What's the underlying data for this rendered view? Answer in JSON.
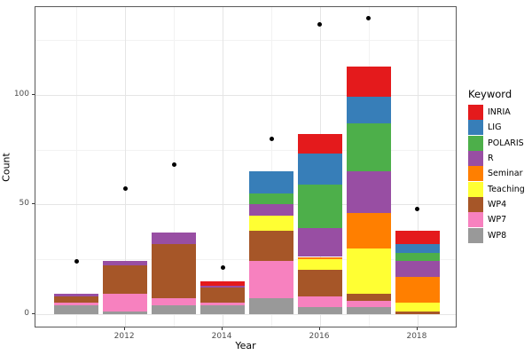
{
  "chart_data": {
    "type": "bar",
    "stacked": true,
    "title": "",
    "xlabel": "Year",
    "ylabel": "Count",
    "legend_title": "Keyword",
    "legend_position": "right",
    "grid": true,
    "categories": [
      2011,
      2012,
      2013,
      2014,
      2015,
      2016,
      2017,
      2018
    ],
    "series": [
      {
        "name": "INRIA",
        "color": "#E41A1C",
        "values": [
          0,
          0,
          0,
          2,
          0,
          9,
          14,
          6
        ]
      },
      {
        "name": "LIG",
        "color": "#377EB8",
        "values": [
          0,
          0,
          0,
          0,
          10,
          14,
          12,
          4
        ]
      },
      {
        "name": "POLARIS",
        "color": "#4DAF4A",
        "values": [
          0,
          0,
          0,
          0,
          5,
          20,
          22,
          4
        ]
      },
      {
        "name": "R",
        "color": "#984EA3",
        "values": [
          1,
          2,
          5,
          1,
          5,
          13,
          19,
          7
        ]
      },
      {
        "name": "Seminar",
        "color": "#FF7F00",
        "values": [
          0,
          0,
          0,
          0,
          0,
          1,
          16,
          12
        ]
      },
      {
        "name": "Teaching",
        "color": "#FFFF33",
        "values": [
          0,
          0,
          0,
          0,
          7,
          5,
          21,
          4
        ]
      },
      {
        "name": "WP4",
        "color": "#A65628",
        "values": [
          3,
          13,
          25,
          7,
          14,
          12,
          3,
          1
        ]
      },
      {
        "name": "WP7",
        "color": "#F781BF",
        "values": [
          1,
          8,
          3,
          1,
          17,
          5,
          3,
          0
        ]
      },
      {
        "name": "WP8",
        "color": "#999999",
        "values": [
          4,
          1,
          4,
          4,
          7,
          3,
          3,
          0
        ]
      }
    ],
    "points": {
      "name": "yearly-total-dots",
      "color": "#000000",
      "values": [
        24,
        57,
        68,
        21,
        80,
        132,
        135,
        48
      ]
    },
    "x_major_ticks": [
      2012,
      2014,
      2016,
      2018
    ],
    "x_minor_gridlines": [
      2011,
      2013,
      2015,
      2017
    ],
    "y_major_ticks": [
      0,
      50,
      100
    ],
    "y_minor_gridlines": [
      25,
      75,
      125
    ],
    "xlim": [
      2010.16,
      2018.82
    ],
    "ylim": [
      -6.6,
      140
    ],
    "bar_width": 0.9
  }
}
